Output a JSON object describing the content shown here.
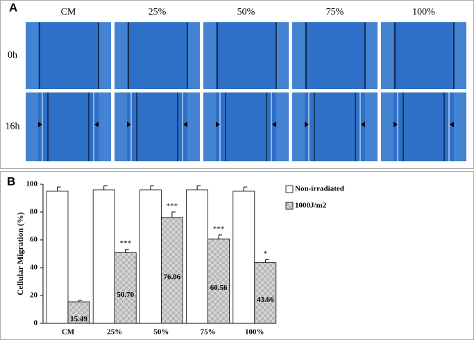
{
  "panel_a": {
    "label": "A",
    "columns": [
      "CM",
      "25%",
      "50%",
      "75%",
      "100%"
    ],
    "rows": [
      "0h",
      "16h"
    ]
  },
  "panel_b_label": "B",
  "chart_data": {
    "type": "bar",
    "ylabel": "Cellular Migration (%)",
    "categories": [
      "CM",
      "25%",
      "50%",
      "75%",
      "100%"
    ],
    "series": [
      {
        "name": "Non-irradiated",
        "color": "#ffffff",
        "values": [
          95,
          96,
          96,
          96,
          95
        ],
        "errors": [
          3,
          3,
          3,
          3,
          3
        ]
      },
      {
        "name": "1000J/m2",
        "color": "#c8c8c8",
        "values": [
          15.49,
          50.7,
          76.06,
          60.56,
          43.66
        ],
        "value_labels": [
          "15.49",
          "50.70",
          "76.06",
          "60.56",
          "43.66"
        ],
        "errors": [
          1,
          2.5,
          4,
          3,
          2
        ],
        "significance": [
          null,
          "***",
          "***",
          "***",
          "*"
        ]
      }
    ],
    "ylim": [
      0,
      100
    ],
    "yticks": [
      0,
      20,
      40,
      60,
      80,
      100
    ],
    "legend": "top-right"
  }
}
